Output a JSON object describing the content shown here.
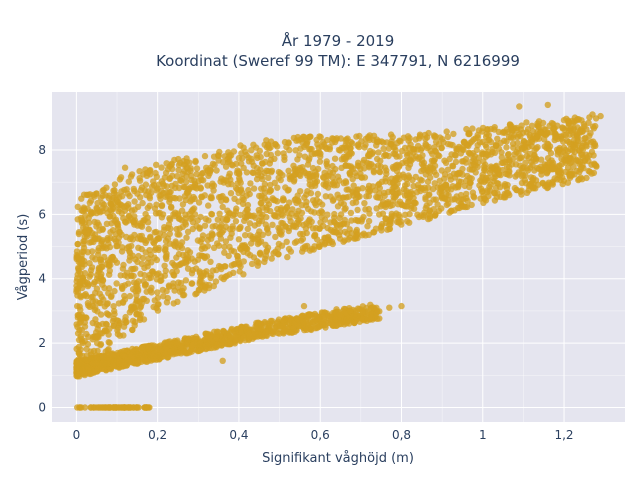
{
  "chart_data": {
    "type": "scatter",
    "title_line1": "År 1979 - 2019",
    "title_line2": "Koordinat (Sweref 99 TM): E 347791, N 6216999",
    "xlabel": "Signifikant våghöjd (m)",
    "ylabel": "Vågperiod (s)",
    "xlim": [
      -0.06,
      1.35
    ],
    "ylim": [
      -0.45,
      9.8
    ],
    "xticks": [
      0,
      0.2,
      0.4,
      0.6,
      0.8,
      1,
      1.2
    ],
    "xtick_labels": [
      "0",
      "0,2",
      "0,4",
      "0,6",
      "0,8",
      "1",
      "1,2"
    ],
    "yticks": [
      0,
      2,
      4,
      6,
      8
    ],
    "ytick_labels": [
      "0",
      "2",
      "4",
      "6",
      "8"
    ],
    "grid": true,
    "legend": "none",
    "colors": {
      "marker": "#D4A020",
      "plot_bg": "#E5E5EF",
      "grid": "#ffffff",
      "text": "#2a3f5f"
    },
    "series": [
      {
        "marker_color": "#D4A020",
        "clusters": [
          {
            "label": "main band",
            "x_range": [
              0.0,
              1.28
            ],
            "y_lower": [
              1.1,
              1.5,
              3.0,
              4.6,
              5.8,
              7.2
            ],
            "y_upper": [
              6.5,
              6.8,
              7.6,
              8.4,
              8.5,
              9.1
            ],
            "x_knots": [
              0.0,
              0.05,
              0.2,
              0.5,
              0.85,
              1.28
            ]
          },
          {
            "label": "lower band",
            "x_range": [
              0.0,
              0.75
            ],
            "y_line": [
              1.2,
              1.6,
              2.4,
              3.0
            ],
            "x_knots": [
              0.0,
              0.15,
              0.45,
              0.75
            ]
          },
          {
            "label": "zero period",
            "x_range": [
              0.0,
              0.18
            ],
            "y": 0
          }
        ]
      }
    ],
    "outliers": [
      [
        1.09,
        9.35
      ],
      [
        1.16,
        9.4
      ],
      [
        1.27,
        9.1
      ],
      [
        1.29,
        9.05
      ],
      [
        1.22,
        8.9
      ],
      [
        0.11,
        7.15
      ],
      [
        0.12,
        7.45
      ],
      [
        0.33,
        7.35
      ],
      [
        0.33,
        7.45
      ],
      [
        0.02,
        5.45
      ],
      [
        0.15,
        0.0
      ],
      [
        0.13,
        0.0
      ],
      [
        0.77,
        3.1
      ],
      [
        0.8,
        3.15
      ],
      [
        0.9,
        6.5
      ],
      [
        0.08,
        6.5
      ],
      [
        0.64,
        3.05
      ],
      [
        0.56,
        3.15
      ],
      [
        0.36,
        1.45
      ],
      [
        0.18,
        1.9
      ]
    ]
  }
}
